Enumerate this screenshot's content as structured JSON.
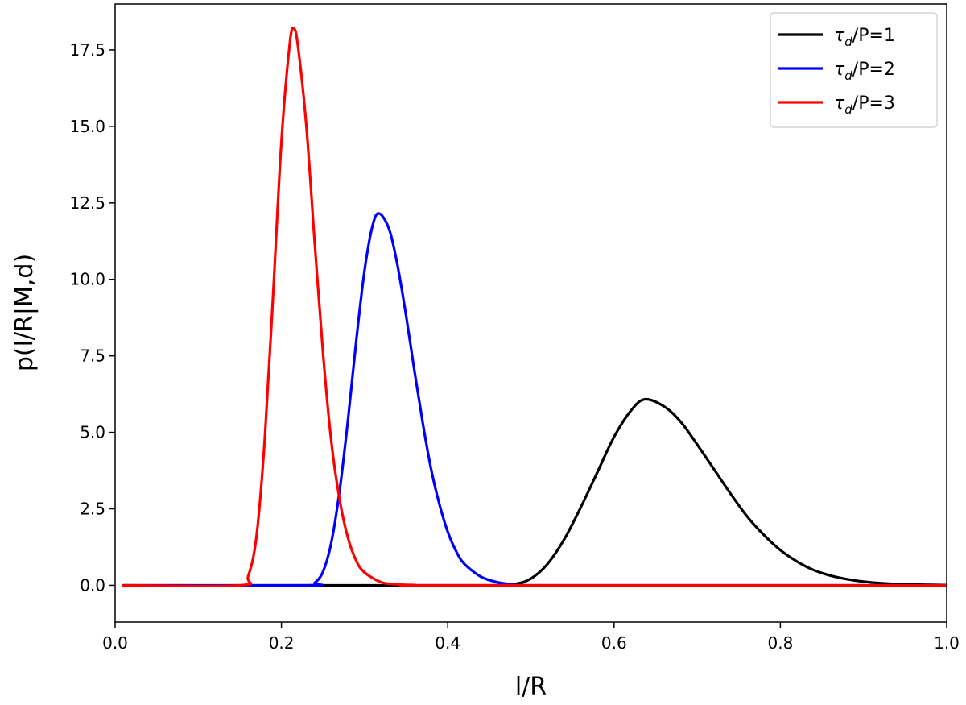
{
  "chart_data": {
    "type": "line",
    "title": "",
    "xlabel": "l/R",
    "ylabel": "p(l/R|M,d)",
    "xlim": [
      0.0,
      1.0
    ],
    "ylim": [
      -1.2,
      19.0
    ],
    "xticks": [
      0.0,
      0.2,
      0.4,
      0.6,
      0.8,
      1.0
    ],
    "xtick_labels": [
      "0.0",
      "0.2",
      "0.4",
      "0.6",
      "0.8",
      "1.0"
    ],
    "yticks": [
      0.0,
      2.5,
      5.0,
      7.5,
      10.0,
      12.5,
      15.0,
      17.5
    ],
    "ytick_labels": [
      "0.0",
      "2.5",
      "5.0",
      "7.5",
      "10.0",
      "12.5",
      "15.0",
      "17.5"
    ],
    "grid": false,
    "legend_position": "top-right",
    "series": [
      {
        "legend_symbol": "τ",
        "legend_sub": "d",
        "legend_rest": "/P=1",
        "color": "#000000",
        "x": [
          0.01,
          0.45,
          0.48,
          0.5,
          0.52,
          0.54,
          0.56,
          0.58,
          0.6,
          0.62,
          0.637,
          0.66,
          0.68,
          0.7,
          0.72,
          0.74,
          0.76,
          0.78,
          0.8,
          0.82,
          0.84,
          0.86,
          0.88,
          0.9,
          0.92,
          0.95,
          1.0
        ],
        "y": [
          0.0,
          0.0,
          0.04,
          0.22,
          0.7,
          1.5,
          2.55,
          3.7,
          4.85,
          5.7,
          6.08,
          5.85,
          5.35,
          4.6,
          3.8,
          3.0,
          2.25,
          1.65,
          1.15,
          0.78,
          0.5,
          0.32,
          0.2,
          0.12,
          0.07,
          0.03,
          0.01
        ]
      },
      {
        "legend_symbol": "τ",
        "legend_sub": "d",
        "legend_rest": "/P=2",
        "color": "#0000ff",
        "x": [
          0.01,
          0.23,
          0.24,
          0.25,
          0.26,
          0.27,
          0.28,
          0.29,
          0.3,
          0.31,
          0.318,
          0.33,
          0.34,
          0.35,
          0.36,
          0.37,
          0.38,
          0.39,
          0.4,
          0.41,
          0.42,
          0.44,
          0.46,
          0.48,
          0.5,
          1.0
        ],
        "y": [
          0.0,
          0.0,
          0.08,
          0.45,
          1.4,
          3.1,
          5.4,
          8.0,
          10.3,
          11.8,
          12.15,
          11.6,
          10.4,
          8.8,
          7.0,
          5.3,
          3.8,
          2.65,
          1.75,
          1.12,
          0.7,
          0.28,
          0.1,
          0.03,
          0.0,
          0.0
        ]
      },
      {
        "legend_symbol": "τ",
        "legend_sub": "d",
        "legend_rest": "/P=3",
        "color": "#ff0000",
        "x": [
          0.01,
          0.15,
          0.16,
          0.17,
          0.18,
          0.19,
          0.2,
          0.21,
          0.215,
          0.22,
          0.23,
          0.24,
          0.25,
          0.26,
          0.27,
          0.28,
          0.29,
          0.3,
          0.32,
          0.34,
          0.36,
          0.4,
          1.0
        ],
        "y": [
          0.0,
          0.0,
          0.3,
          1.6,
          4.8,
          9.5,
          14.5,
          17.7,
          18.2,
          17.6,
          15.0,
          11.2,
          7.6,
          4.7,
          2.8,
          1.55,
          0.8,
          0.42,
          0.1,
          0.03,
          0.01,
          0.0,
          0.0
        ]
      }
    ]
  }
}
